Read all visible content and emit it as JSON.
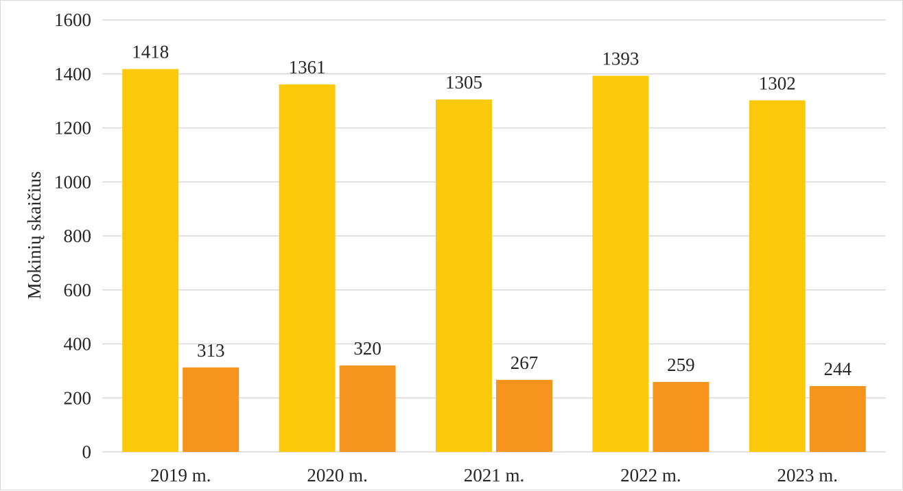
{
  "chart_data": {
    "type": "bar",
    "title": "",
    "xlabel": "",
    "ylabel": "Mokinių skaičius",
    "ylim": [
      0,
      1600
    ],
    "yticks": [
      "0",
      "200",
      "400",
      "600",
      "800",
      "1000",
      "1200",
      "1400",
      "1600"
    ],
    "categories": [
      "2019 m.",
      "2020 m.",
      "2021 m.",
      "2022 m.",
      "2023 m."
    ],
    "series": [
      {
        "values": [
          1418,
          1361,
          1305,
          1393,
          1302
        ],
        "color": "#fcc80a"
      },
      {
        "values": [
          313,
          320,
          267,
          259,
          244
        ],
        "color": "#f7941e"
      }
    ],
    "grid": true,
    "gridColor": "#d9d9d9",
    "legend": "none",
    "data_labels": true
  }
}
